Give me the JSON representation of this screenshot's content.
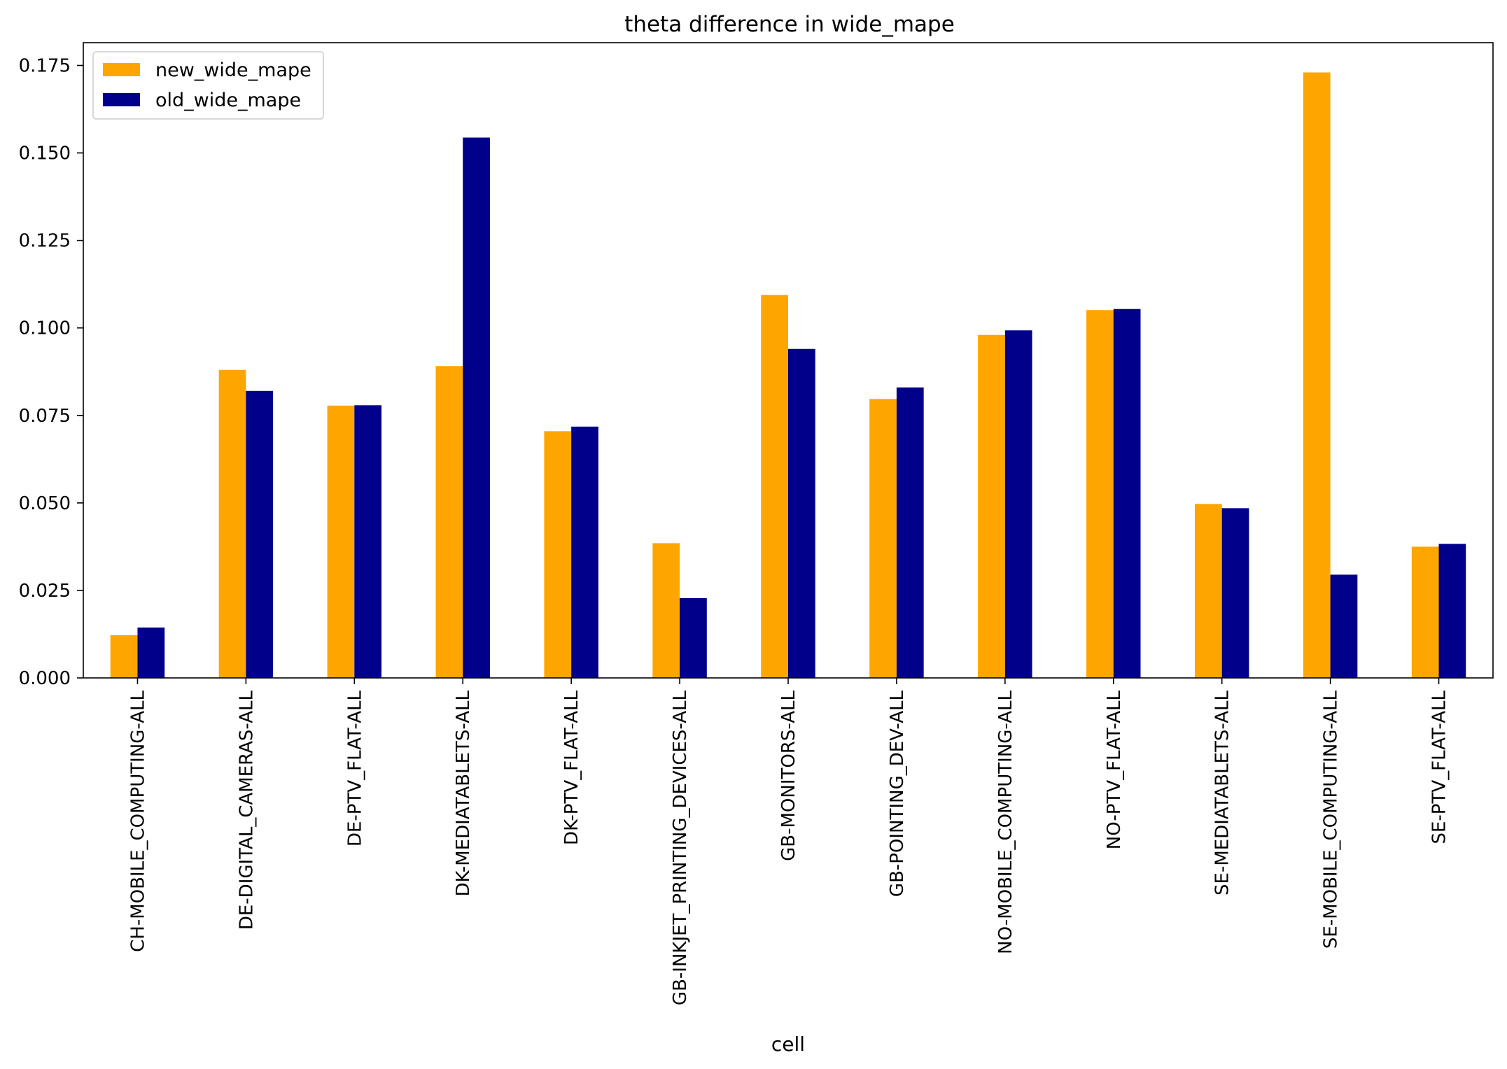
{
  "chart_data": {
    "type": "bar",
    "title": "theta difference in wide_mape",
    "xlabel": "cell",
    "ylabel": "",
    "ylim": [
      0,
      0.1815
    ],
    "yticks": [
      "0.000",
      "0.025",
      "0.050",
      "0.075",
      "0.100",
      "0.125",
      "0.150",
      "0.175"
    ],
    "ytick_values": [
      0,
      0.025,
      0.05,
      0.075,
      0.1,
      0.125,
      0.15,
      0.175
    ],
    "legend_position": "upper-left",
    "grid": false,
    "categories": [
      "CH-MOBILE_COMPUTING-ALL",
      "DE-DIGITAL_CAMERAS-ALL",
      "DE-PTV_FLAT-ALL",
      "DK-MEDIATABLETS-ALL",
      "DK-PTV_FLAT-ALL",
      "GB-INKJET_PRINTING_DEVICES-ALL",
      "GB-MONITORS-ALL",
      "GB-POINTING_DEV-ALL",
      "NO-MOBILE_COMPUTING-ALL",
      "NO-PTV_FLAT-ALL",
      "SE-MEDIATABLETS-ALL",
      "SE-MOBILE_COMPUTING-ALL",
      "SE-PTV_FLAT-ALL"
    ],
    "series": [
      {
        "name": "new_wide_mape",
        "color": "#FFA500",
        "values": [
          0.0122,
          0.088,
          0.0778,
          0.0891,
          0.0705,
          0.0385,
          0.1094,
          0.0797,
          0.098,
          0.1051,
          0.0497,
          0.173,
          0.0375
        ]
      },
      {
        "name": "old_wide_mape",
        "color": "#00008B",
        "values": [
          0.0144,
          0.082,
          0.0779,
          0.1544,
          0.0718,
          0.0228,
          0.094,
          0.083,
          0.0993,
          0.1054,
          0.0485,
          0.0295,
          0.0383
        ]
      }
    ]
  }
}
